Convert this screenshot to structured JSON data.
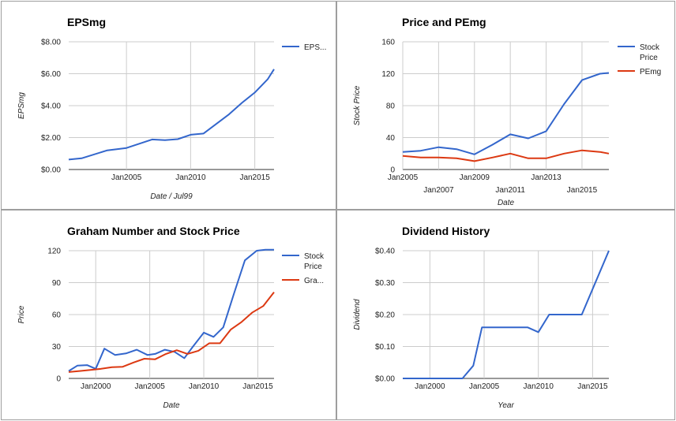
{
  "chart_data": [
    {
      "type": "line",
      "title": "EPSmg",
      "xlabel": "Date / Jul99",
      "ylabel": "EPSmg",
      "xlim": [
        2000.5,
        2016.5
      ],
      "ylim": [
        0,
        8
      ],
      "yticks": [
        0,
        2,
        4,
        6,
        8
      ],
      "ytick_labels": [
        "$0.00",
        "$2.00",
        "$4.00",
        "$6.00",
        "$8.00"
      ],
      "xticks": [
        2005,
        2010,
        2015
      ],
      "xtick_labels": [
        "Jan2005",
        "Jan2010",
        "Jan2015"
      ],
      "legend": "right",
      "grid": true,
      "series": [
        {
          "name": "EPS...",
          "color": "#3366cc",
          "x": [
            2000.5,
            2001.5,
            2003.5,
            2005,
            2007,
            2008,
            2009,
            2010,
            2011,
            2013,
            2014,
            2015,
            2016,
            2016.5
          ],
          "y": [
            0.62,
            0.7,
            1.2,
            1.35,
            1.88,
            1.84,
            1.9,
            2.18,
            2.25,
            3.46,
            4.18,
            4.82,
            5.65,
            6.28
          ]
        }
      ]
    },
    {
      "type": "line",
      "title": "Price and PEmg",
      "xlabel": "Date",
      "ylabel": "Stock Price",
      "xlim": [
        2005,
        2016.5
      ],
      "ylim": [
        0,
        160
      ],
      "yticks": [
        0,
        40,
        80,
        120,
        160
      ],
      "ytick_labels": [
        "0",
        "40",
        "80",
        "120",
        "160"
      ],
      "xticks": [
        2005,
        2007,
        2009,
        2011,
        2013,
        2015
      ],
      "xtick_labels": [
        "Jan2005",
        "Jan2007",
        "Jan2009",
        "Jan2011",
        "Jan2013",
        "Jan2015"
      ],
      "legend": "right",
      "grid": true,
      "series": [
        {
          "name": "Stock Price",
          "color": "#3366cc",
          "x": [
            2005,
            2006,
            2007,
            2008,
            2009,
            2010,
            2011,
            2012,
            2013,
            2014,
            2015,
            2016,
            2016.5
          ],
          "y": [
            22,
            23.5,
            28,
            25.5,
            19,
            31,
            44,
            39,
            48,
            82,
            112,
            120,
            121
          ]
        },
        {
          "name": "PEmg",
          "color": "#dc3912",
          "x": [
            2005,
            2006,
            2007,
            2008,
            2009,
            2010,
            2011,
            2012,
            2013,
            2014,
            2015,
            2016,
            2016.5
          ],
          "y": [
            17,
            15,
            15,
            14,
            10.5,
            15,
            20,
            14,
            14,
            20,
            24,
            22,
            20
          ]
        }
      ]
    },
    {
      "type": "line",
      "title": "Graham Number and Stock Price",
      "xlabel": "Date",
      "ylabel": "Price",
      "xlim": [
        1997.5,
        2016.5
      ],
      "ylim": [
        0,
        120
      ],
      "yticks": [
        0,
        30,
        60,
        90,
        120
      ],
      "ytick_labels": [
        "0",
        "30",
        "60",
        "90",
        "120"
      ],
      "xticks": [
        2000,
        2005,
        2010,
        2015
      ],
      "xtick_labels": [
        "Jan2000",
        "Jan2005",
        "Jan2010",
        "Jan2015"
      ],
      "legend": "right",
      "grid": true,
      "series": [
        {
          "name": "Stock Price",
          "color": "#3366cc",
          "x": [
            1997.5,
            1998.3,
            1999.2,
            2000,
            2000.8,
            2001.8,
            2002.8,
            2003.8,
            2004.8,
            2005.5,
            2006.4,
            2007.3,
            2008.2,
            2009,
            2010,
            2010.9,
            2011.8,
            2012.8,
            2013.8,
            2014.9,
            2015.7,
            2016.5
          ],
          "y": [
            7,
            12,
            12.5,
            9,
            28,
            22,
            23.5,
            27,
            22,
            23,
            27,
            25,
            19,
            30,
            43,
            39,
            48,
            80,
            111,
            120,
            121,
            121
          ]
        },
        {
          "name": "Gra...",
          "color": "#dc3912",
          "x": [
            1997.5,
            1998.5,
            1999.5,
            2000.5,
            2001.5,
            2002.5,
            2003.5,
            2004.5,
            2005.5,
            2006.5,
            2007.5,
            2008.5,
            2009.5,
            2010.5,
            2011.5,
            2012.5,
            2013.5,
            2014.5,
            2015.5,
            2016.5
          ],
          "y": [
            6,
            7,
            8,
            9,
            10.5,
            11,
            15,
            18.5,
            18,
            23,
            26.5,
            23,
            26,
            33,
            33,
            46,
            53,
            62,
            68,
            81
          ]
        }
      ]
    },
    {
      "type": "line",
      "title": "Dividend History",
      "xlabel": "Year",
      "ylabel": "Dividend",
      "xlim": [
        1997.5,
        2016.5
      ],
      "ylim": [
        0,
        0.4
      ],
      "yticks": [
        0,
        0.1,
        0.2,
        0.3,
        0.4
      ],
      "ytick_labels": [
        "$0.00",
        "$0.10",
        "$0.20",
        "$0.30",
        "$0.40"
      ],
      "xticks": [
        2000,
        2005,
        2010,
        2015
      ],
      "xtick_labels": [
        "Jan2000",
        "Jan2005",
        "Jan2010",
        "Jan2015"
      ],
      "legend": "none",
      "grid": true,
      "series": [
        {
          "name": "",
          "color": "#3366cc",
          "x": [
            1997.5,
            2000,
            2003,
            2004,
            2004.8,
            2009,
            2010,
            2011,
            2014,
            2016.5
          ],
          "y": [
            0,
            0,
            0,
            0.04,
            0.16,
            0.16,
            0.145,
            0.2,
            0.2,
            0.4
          ]
        }
      ]
    }
  ]
}
